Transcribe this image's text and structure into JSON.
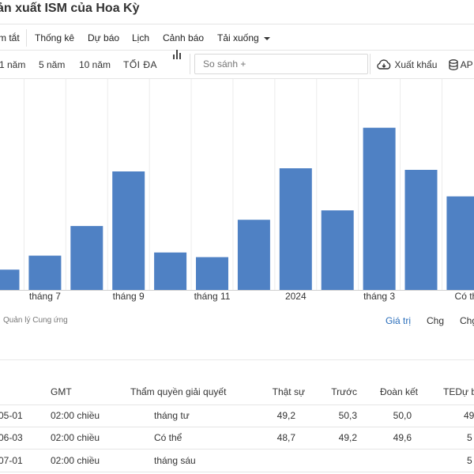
{
  "page": {
    "title": "ản xuất ISM của Hoa Kỳ"
  },
  "nav": {
    "items": [
      "m tắt",
      "Thống kê",
      "Dự báo",
      "Lịch",
      "Cảnh báo",
      "Tải xuống"
    ]
  },
  "toolbar": {
    "ranges": [
      "1 năm",
      "5 năm",
      "10 năm",
      "TỐI ĐA"
    ],
    "compare_placeholder": "So sánh +",
    "export_label": "Xuất khẩu",
    "api_label": "AP"
  },
  "chart_data": {
    "type": "bar",
    "color": "#4f81c4",
    "categories": [
      "",
      "",
      "",
      "tháng 9",
      "",
      "tháng 11",
      "",
      "2024",
      "",
      "tháng 3",
      "",
      "Có thể"
    ],
    "values": [
      47.8,
      48.7,
      50.6,
      54.1,
      48.9,
      48.6,
      51.0,
      54.3,
      51.6,
      56.9,
      54.2,
      52.5
    ],
    "ylim": [
      46.5,
      58.0
    ],
    "tick_labels": [
      "tháng 7",
      "tháng 9",
      "tháng 11",
      "2024",
      "tháng 3",
      "Có th"
    ]
  },
  "footer": {
    "source": "Quản lý Cung ứng",
    "views": [
      "Giá trị",
      "Chg",
      "Chg"
    ]
  },
  "calendar": {
    "headers": [
      "GMT",
      "Thẩm quyền giải quyết",
      "Thật sự",
      "Trước",
      "Đoàn kết",
      "TEDự b"
    ],
    "rows": [
      {
        "date": "05-01",
        "time": "02:00 chiều",
        "ref": "tháng tư",
        "actual": "49,2",
        "previous": "50,3",
        "consensus": "50,0",
        "forecast": "49"
      },
      {
        "date": "06-03",
        "time": "02:00 chiều",
        "ref": "Có thể",
        "actual": "48,7",
        "previous": "49,2",
        "consensus": "49,6",
        "forecast": "5"
      },
      {
        "date": "07-01",
        "time": "02:00 chiều",
        "ref": "tháng sáu",
        "actual": "",
        "previous": "",
        "consensus": "",
        "forecast": "5"
      }
    ]
  }
}
